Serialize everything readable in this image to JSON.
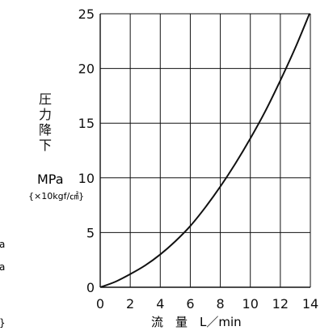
{
  "chart_data": {
    "type": "line",
    "title": "",
    "xlabel": "流　量　L／min",
    "ylabel": "圧力降下",
    "y_unit": "MPa",
    "y_unit_alt": "{×10kgf/㎠}",
    "xlim": [
      0,
      14
    ],
    "ylim": [
      0,
      25
    ],
    "x_ticks": [
      0,
      2,
      4,
      6,
      8,
      10,
      12,
      14
    ],
    "y_ticks": [
      0,
      5,
      10,
      15,
      20,
      25
    ],
    "grid": true,
    "series": [
      {
        "x": [
          0,
          1,
          2,
          3,
          4,
          5,
          6,
          7,
          8,
          9,
          10,
          11,
          12,
          13,
          14
        ],
        "y": [
          0,
          0.5,
          1.2,
          2.0,
          3.0,
          4.2,
          5.6,
          7.3,
          9.2,
          11.3,
          13.6,
          16.1,
          18.9,
          21.9,
          25.2
        ]
      }
    ],
    "colors": {
      "line": "#111111",
      "grid": "#111111",
      "text": "#111111"
    }
  },
  "side_fragments": [
    "a",
    "a",
    "}"
  ]
}
